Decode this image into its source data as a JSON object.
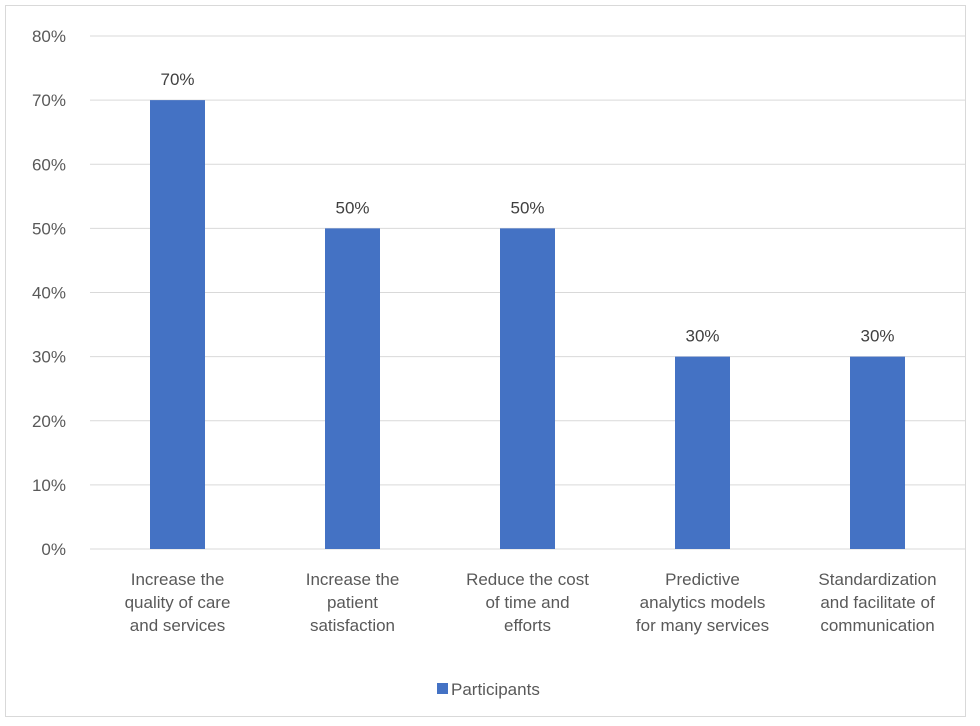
{
  "chart_data": {
    "type": "bar",
    "categories": [
      [
        "Increase the",
        "quality of care",
        "and services"
      ],
      [
        "Increase the",
        "patient",
        "satisfaction"
      ],
      [
        "Reduce the cost",
        "of time and",
        "efforts"
      ],
      [
        "Predictive",
        "analytics models",
        "for many services"
      ],
      [
        "Standardization",
        "and facilitate of",
        "communication"
      ]
    ],
    "series": [
      {
        "name": "Participants",
        "values": [
          70,
          50,
          50,
          30,
          30
        ],
        "color": "#4472C4"
      }
    ],
    "data_labels": [
      "70%",
      "50%",
      "50%",
      "30%",
      "30%"
    ],
    "ylim": [
      0,
      80
    ],
    "yticks": [
      "0%",
      "10%",
      "20%",
      "30%",
      "40%",
      "50%",
      "60%",
      "70%",
      "80%"
    ],
    "grid": true,
    "legend_position": "bottom",
    "gridline_color": "#d9d9d9",
    "text_color": "#595959"
  }
}
